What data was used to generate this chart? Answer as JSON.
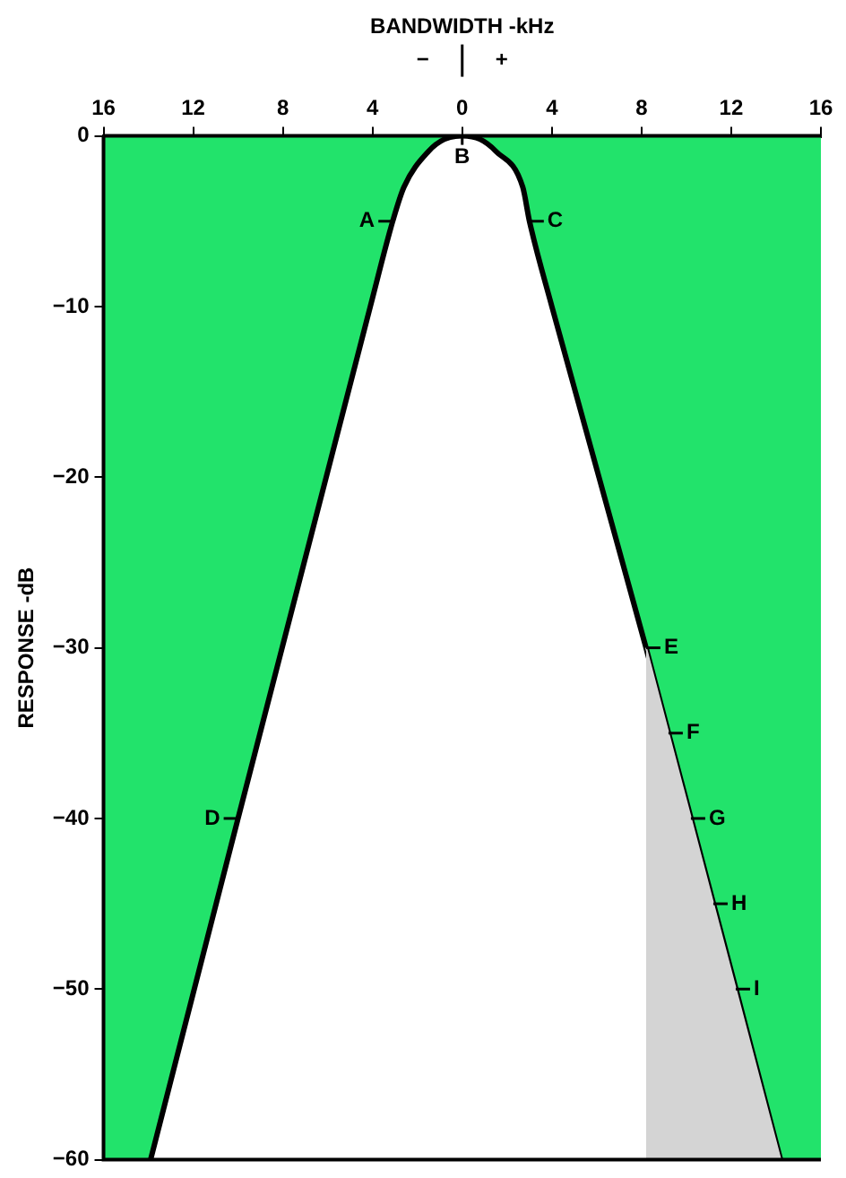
{
  "chart_data": {
    "type": "line",
    "xlabel": "BANDWIDTH -kHz",
    "ylabel": "RESPONSE -dB",
    "xlim": [
      -16,
      16
    ],
    "xticks": [
      {
        "value": -16,
        "label": "16"
      },
      {
        "value": -12,
        "label": "12"
      },
      {
        "value": -8,
        "label": "8"
      },
      {
        "value": -4,
        "label": "4"
      },
      0,
      4,
      8,
      12,
      16
    ],
    "ylim": [
      -60,
      0
    ],
    "yticks": [
      -60,
      -50,
      -40,
      -30,
      -20,
      -10,
      0
    ],
    "grid": false,
    "legend": false,
    "marker": "none",
    "series": [
      {
        "color": "#000000",
        "x": [
          -13.9,
          -10.0,
          -4.1,
          -3.1,
          -2.6,
          -1.5,
          -0.8,
          0,
          0.8,
          1.5,
          2.7,
          3.0,
          4.0,
          8.2,
          14.2
        ],
        "values": [
          -60,
          -40,
          -10,
          -5,
          -3,
          -0.9,
          -0.2,
          0,
          -0.2,
          -0.9,
          -3,
          -5,
          -10,
          -30,
          -60
        ]
      },
      {
        "type": "area",
        "color": "#d4d4d4",
        "x": [
          8.2,
          14.2
        ],
        "values": [
          -30,
          -60
        ]
      }
    ],
    "bands": [
      {
        "axis": "x",
        "from": -16,
        "to": 16,
        "color": "#22e36b"
      }
    ],
    "annotations": [
      "−",
      "+",
      {
        "text": "A",
        "x": -3.1,
        "y": -5
      },
      {
        "text": "B",
        "x": 0,
        "y": 0
      },
      {
        "text": "C",
        "x": 3.0,
        "y": -5
      },
      {
        "text": "D",
        "x": -10.0,
        "y": -40
      },
      {
        "text": "E",
        "x": 8.2,
        "y": -30
      },
      {
        "text": "F",
        "x": 9.2,
        "y": -35
      },
      {
        "text": "G",
        "x": 10.2,
        "y": -40
      },
      {
        "text": "H",
        "x": 11.2,
        "y": -45
      },
      {
        "text": "I",
        "x": 12.2,
        "y": -50
      }
    ]
  }
}
